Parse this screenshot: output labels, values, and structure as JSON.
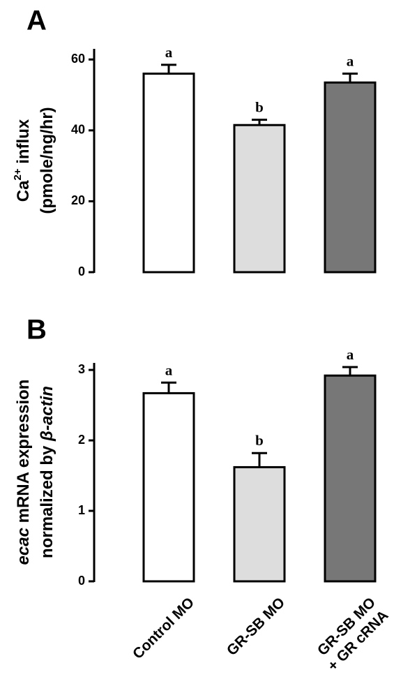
{
  "chart_data": [
    {
      "panel": "A",
      "type": "bar",
      "ylabel_lines": [
        [
          {
            "t": "Ca"
          },
          {
            "t": "2+",
            "sup": true
          },
          {
            "t": " influx"
          }
        ],
        [
          {
            "t": "(pmole/ng/hr)"
          }
        ]
      ],
      "yticks": [
        0,
        20,
        40,
        60
      ],
      "ylim": [
        0,
        63
      ],
      "categories": [
        "Control MO",
        "GR-SB MO",
        "GR-SB MO + GR cRNA"
      ],
      "values": [
        56,
        41.5,
        53.5
      ],
      "errors": [
        2.5,
        1.5,
        2.5
      ],
      "labels": [
        "a",
        "b",
        "a"
      ],
      "colors": [
        "#ffffff",
        "#dddddd",
        "#777777"
      ]
    },
    {
      "panel": "B",
      "type": "bar",
      "ylabel_lines": [
        [
          {
            "t": "ecac",
            "italic": true
          },
          {
            "t": " mRNA expression"
          }
        ],
        [
          {
            "t": "normalized by "
          },
          {
            "t": "β-actin",
            "italic": true
          }
        ]
      ],
      "yticks": [
        0,
        1,
        2,
        3
      ],
      "ylim": [
        0,
        3.1
      ],
      "categories": [
        "Control MO",
        "GR-SB MO",
        "GR-SB MO + GR cRNA"
      ],
      "values": [
        2.67,
        1.62,
        2.92
      ],
      "errors": [
        0.15,
        0.2,
        0.12
      ],
      "labels": [
        "a",
        "b",
        "a"
      ],
      "colors": [
        "#ffffff",
        "#dddddd",
        "#777777"
      ]
    }
  ],
  "x_category_labels": [
    [
      "Control MO"
    ],
    [
      "GR-SB MO"
    ],
    [
      "GR-SB MO",
      "+ GR cRNA"
    ]
  ]
}
